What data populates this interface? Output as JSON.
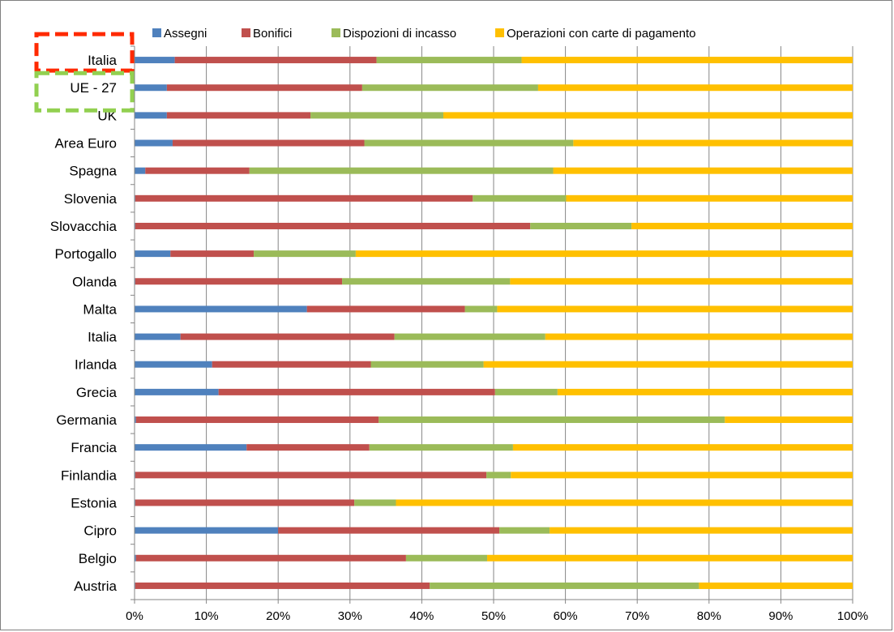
{
  "chart_data": {
    "type": "bar",
    "orientation": "horizontal",
    "stacked": true,
    "categories": [
      "Italia",
      "UE - 27",
      "UK",
      "Area Euro",
      "Spagna",
      "Slovenia",
      "Slovacchia",
      "Portogallo",
      "Olanda",
      "Malta",
      "Italia",
      "Irlanda",
      "Grecia",
      "Germania",
      "Francia",
      "Finlandia",
      "Estonia",
      "Cipro",
      "Belgio",
      "Austria"
    ],
    "series": [
      {
        "name": "Assegni",
        "color": "#4F81BD",
        "values": [
          5.6,
          4.5,
          4.5,
          5.3,
          1.5,
          0.1,
          0.1,
          5.0,
          0.1,
          24.0,
          6.4,
          10.8,
          11.7,
          0.2,
          15.6,
          0.1,
          0.1,
          20.0,
          0.2,
          0.1
        ]
      },
      {
        "name": "Bonifici",
        "color": "#C0504D",
        "values": [
          28.1,
          27.2,
          20.0,
          26.7,
          14.5,
          47.0,
          55.0,
          11.6,
          28.8,
          22.0,
          29.8,
          22.1,
          38.5,
          33.8,
          17.1,
          48.9,
          30.5,
          30.8,
          37.6,
          41.0
        ]
      },
      {
        "name": "Dispozioni di incasso",
        "color": "#9BBB59",
        "values": [
          20.2,
          24.5,
          18.5,
          29.1,
          42.3,
          13.0,
          14.1,
          14.2,
          23.4,
          4.5,
          21.0,
          15.7,
          8.7,
          48.2,
          20.0,
          3.4,
          5.8,
          7.0,
          11.3,
          37.5
        ]
      },
      {
        "name": "Operazioni con carte di pagamento",
        "color": "#FFC000",
        "values": [
          46.1,
          43.8,
          57.0,
          38.9,
          41.7,
          39.9,
          30.8,
          69.2,
          47.7,
          49.5,
          42.8,
          51.4,
          41.1,
          17.8,
          47.3,
          47.6,
          63.6,
          42.2,
          50.9,
          21.4
        ]
      }
    ],
    "xlim": [
      0,
      100
    ],
    "xticks": [
      "0%",
      "10%",
      "20%",
      "30%",
      "40%",
      "50%",
      "60%",
      "70%",
      "80%",
      "90%",
      "100%"
    ],
    "grid": true,
    "legend_position": "top",
    "highlights": [
      {
        "target": "Italia",
        "style": "dashed",
        "color": "#FF2A00"
      },
      {
        "target": "UE - 27",
        "style": "dashed",
        "color": "#92D050"
      }
    ]
  }
}
